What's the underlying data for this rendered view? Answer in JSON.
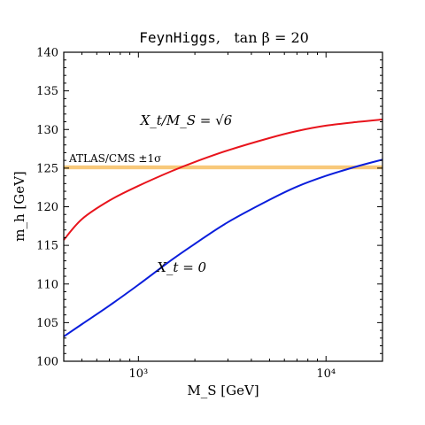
{
  "chart_data": {
    "type": "line",
    "title_code": "FeynHiggs",
    "title_rest": ",   tan β = 20",
    "xlabel": "M_S  [GeV]",
    "ylabel": "m_h  [GeV]",
    "xscale": "log",
    "xlim": [
      400,
      20000
    ],
    "ylim": [
      100,
      140
    ],
    "y_ticks": [
      100,
      105,
      110,
      115,
      120,
      125,
      130,
      135,
      140
    ],
    "y_tick_labels": [
      "100",
      "105",
      "110",
      "115",
      "120",
      "125",
      "130",
      "135",
      "140"
    ],
    "x_ticks": [
      1000,
      10000
    ],
    "x_tick_labels": [
      "10³",
      "10⁴"
    ],
    "band": {
      "label": "ATLAS/CMS ±1σ",
      "ymin": 124.85,
      "ymax": 125.35,
      "color": "#f8c97a"
    },
    "series": [
      {
        "name": "X_t/M_S = √6",
        "color": "#e8141c",
        "x": [
          400,
          500,
          700,
          1000,
          1500,
          2000,
          3000,
          5000,
          7000,
          10000,
          15000,
          20000
        ],
        "y": [
          115.7,
          118.4,
          120.8,
          122.7,
          124.6,
          125.8,
          127.3,
          128.9,
          129.8,
          130.5,
          131.0,
          131.3
        ]
      },
      {
        "name": "X_t = 0",
        "color": "#0a1edc",
        "x": [
          400,
          500,
          700,
          1000,
          1500,
          2000,
          3000,
          5000,
          7000,
          10000,
          15000,
          20000
        ],
        "y": [
          103.2,
          104.8,
          107.2,
          109.9,
          113.1,
          115.2,
          118.0,
          120.9,
          122.6,
          124.0,
          125.3,
          126.1
        ]
      }
    ],
    "annotations": [
      {
        "text": "X_t/M_S = √6",
        "x": 1800,
        "y": 130.6
      },
      {
        "text": "X_t = 0",
        "x": 1700,
        "y": 111.6
      }
    ],
    "legend": "none",
    "grid": false
  }
}
